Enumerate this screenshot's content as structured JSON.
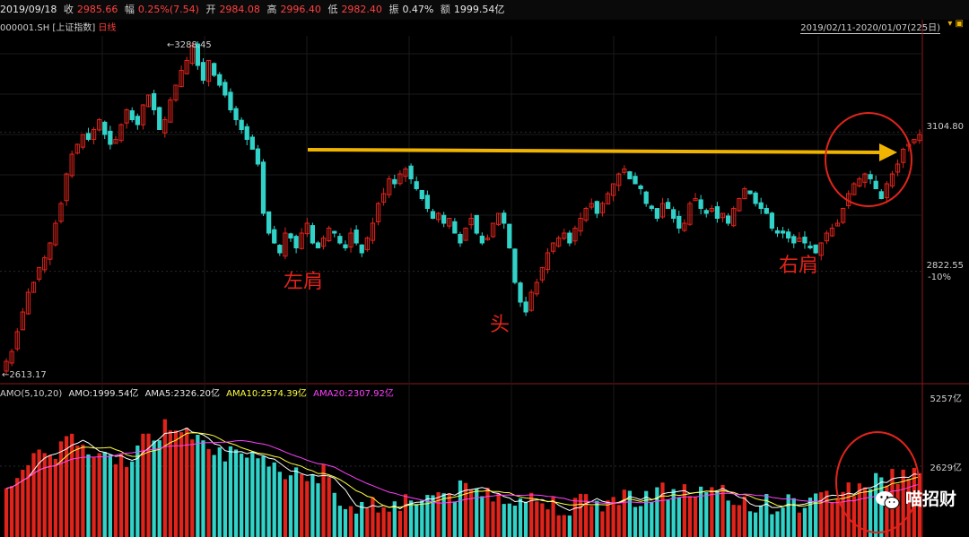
{
  "topbar": {
    "date": "2019/09/18",
    "close_label": "收",
    "close_value": "2985.66",
    "change_label": "幅",
    "change_value": "0.25%(7.54)",
    "open_label": "开",
    "open_value": "2984.08",
    "high_label": "高",
    "high_value": "2996.40",
    "low_label": "低",
    "low_value": "2982.40",
    "amp_label": "振",
    "amp_value": "0.47%",
    "amount_label": "额",
    "amount_value": "1999.54亿"
  },
  "subtitle": {
    "symbol": "000001.SH",
    "name": "[上证指数]",
    "period": "日线"
  },
  "range_label": "2019/02/11-2020/01/07(225日)",
  "price_axis": {
    "upper": "3104.80",
    "lower": "2822.55",
    "lower_pct": "-10%"
  },
  "price_marks": {
    "high_mark": "3288.45",
    "low_mark": "2613.17"
  },
  "annotations": {
    "left_shoulder": "左肩",
    "head": "头",
    "right_shoulder": "右肩"
  },
  "volume_header": {
    "title": "AMO(5,10,20)",
    "amo": "AMO:1999.54亿",
    "ama5": "AMA5:2326.20亿",
    "ama10": "AMA10:2574.39亿",
    "ama20": "AMA20:2307.92亿"
  },
  "volume_axis": {
    "upper": "5257亿",
    "mid": "2629亿"
  },
  "watermark": {
    "text": "喵招财",
    "icon": "wechat-icon"
  },
  "colors": {
    "up": "#e0241b",
    "down": "#31d3c9",
    "neckline": "#f0b400",
    "ma5": "#ffffff",
    "ma10": "#ffff40",
    "ma20": "#ff40ff"
  },
  "chart_data": {
    "type": "candlestick",
    "period": "daily",
    "date_range": "2019/02/11-2020/01/07",
    "y_ticks": [
      3104.8,
      2822.55
    ],
    "max_marked": 3288.45,
    "min_marked": 2613.17,
    "pattern": "head-and-shoulders bottom",
    "neckline_level": 3000,
    "closes": [
      2640,
      2660,
      2700,
      2740,
      2780,
      2800,
      2830,
      2850,
      2880,
      2920,
      2960,
      3020,
      3060,
      3080,
      3100,
      3090,
      3110,
      3130,
      3100,
      3080,
      3090,
      3120,
      3150,
      3130,
      3120,
      3160,
      3180,
      3150,
      3110,
      3130,
      3170,
      3200,
      3230,
      3250,
      3280,
      3240,
      3210,
      3250,
      3220,
      3200,
      3180,
      3150,
      3130,
      3110,
      3090,
      3070,
      3040,
      2940,
      2900,
      2880,
      2860,
      2900,
      2890,
      2870,
      2900,
      2920,
      2880,
      2870,
      2890,
      2910,
      2900,
      2880,
      2870,
      2900,
      2880,
      2860,
      2890,
      2920,
      2960,
      2980,
      3010,
      3000,
      3020,
      3030,
      3010,
      2990,
      2970,
      2950,
      2930,
      2940,
      2920,
      2930,
      2900,
      2880,
      2910,
      2930,
      2900,
      2880,
      2890,
      2920,
      2940,
      2920,
      2870,
      2800,
      2760,
      2740,
      2780,
      2800,
      2830,
      2860,
      2880,
      2890,
      2900,
      2880,
      2910,
      2930,
      2950,
      2960,
      2940,
      2960,
      2980,
      3000,
      3020,
      3030,
      3010,
      3000,
      2990,
      2960,
      2950,
      2930,
      2960,
      2950,
      2930,
      2910,
      2920,
      2960,
      2970,
      2950,
      2940,
      2950,
      2930,
      2940,
      2920,
      2950,
      2970,
      2990,
      2980,
      2960,
      2950,
      2940,
      2910,
      2900,
      2900,
      2890,
      2880,
      2890,
      2880,
      2870,
      2860,
      2880,
      2900,
      2910,
      2920,
      2950,
      2980,
      3000,
      3010,
      3020,
      3010,
      2990,
      2970,
      3000,
      3020,
      3040,
      3070,
      3080,
      3090,
      3100
    ],
    "volume_range_yi": [
      0,
      5257
    ]
  }
}
